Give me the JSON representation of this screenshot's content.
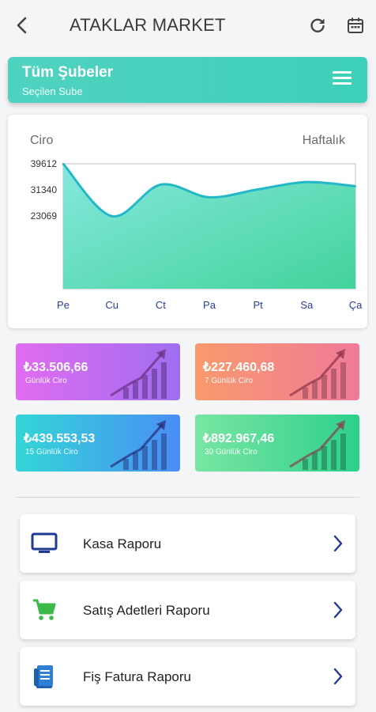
{
  "header": {
    "title": "ATAKLAR MARKET"
  },
  "branch": {
    "name": "Tüm Şubeler",
    "subtitle": "Seçilen Sube"
  },
  "chart": {
    "title": "Ciro",
    "period": "Haftalık"
  },
  "chart_data": {
    "type": "area",
    "title": "Ciro",
    "categories": [
      "Pe",
      "Cu",
      "Ct",
      "Pa",
      "Pt",
      "Sa",
      "Ça"
    ],
    "y_ticks": [
      39612,
      31340,
      23069
    ],
    "values": [
      39612,
      23000,
      33000,
      29000,
      31500,
      33800,
      32500
    ],
    "ylim": [
      0,
      39612
    ],
    "grid": false,
    "colors": {
      "line": "#22b8c8",
      "fill_top": "#7fe3da",
      "fill_bottom": "#46d3a3"
    }
  },
  "stats": [
    {
      "value": "₺33.506,66",
      "label": "Günlük Ciro"
    },
    {
      "value": "₺227.460,68",
      "label": "7 Günlük Ciro"
    },
    {
      "value": "₺439.553,53",
      "label": "15 Günlük Ciro"
    },
    {
      "value": "₺892.967,46",
      "label": "30 Günlük Ciro"
    }
  ],
  "reports": [
    {
      "label": "Kasa Raporu",
      "icon": "monitor-icon"
    },
    {
      "label": "Satış Adetleri Raporu",
      "icon": "cart-icon"
    },
    {
      "label": "Fiş Fatura Raporu",
      "icon": "receipt-icon"
    }
  ],
  "colors": {
    "accent": "#3ed0b9",
    "axis_label": "#2a3d9e",
    "icon_blue": "#1f3a93",
    "icon_green": "#3cb94a"
  }
}
